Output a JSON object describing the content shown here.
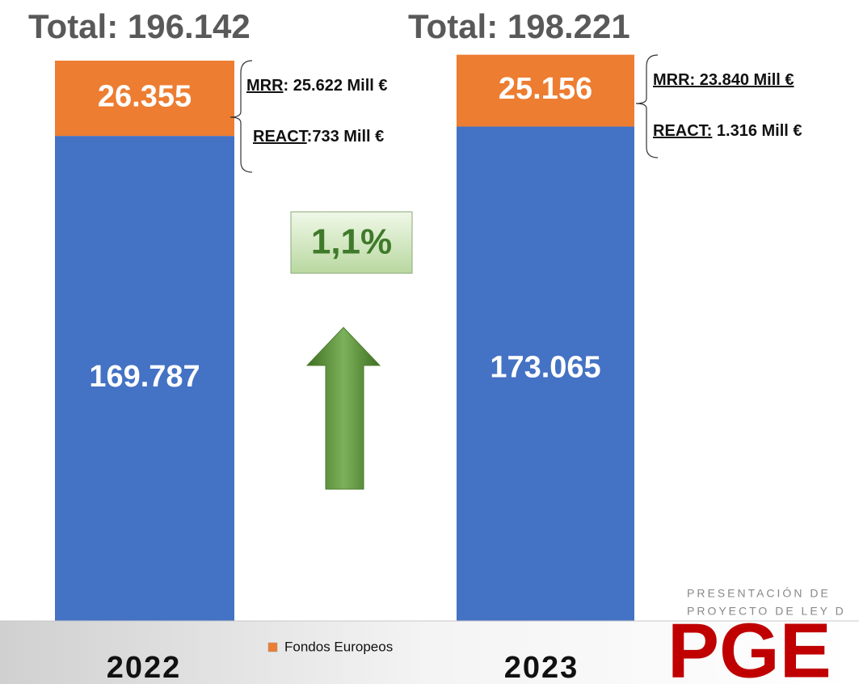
{
  "chart_data": {
    "type": "bar",
    "stacked": true,
    "categories": [
      "2022",
      "2023"
    ],
    "series": [
      {
        "color": "#4472c4",
        "values": [
          169787,
          173065
        ],
        "value_labels": [
          "169.787",
          "173.065"
        ]
      },
      {
        "name": "Fondos Europeos",
        "color": "#ed7d31",
        "values": [
          26355,
          25156
        ],
        "value_labels": [
          "26.355",
          "25.156"
        ]
      }
    ],
    "totals": [
      "Total: 196.142",
      "Total: 198.221"
    ],
    "notes": [
      [
        {
          "label": "MRR",
          "text": ": 25.622 Mill €"
        },
        {
          "label": "REACT",
          "text": ":733 Mill €"
        }
      ],
      [
        {
          "label": "MRR: 23.840 Mill €"
        },
        {
          "label": "REACT:",
          "text": " 1.316 Mill €"
        }
      ]
    ],
    "change": "1,1%"
  },
  "logo": {
    "lines": [
      "PRESENTACIÓN DE",
      "PROYECTO DE LEY D"
    ],
    "mark": "PGE"
  }
}
